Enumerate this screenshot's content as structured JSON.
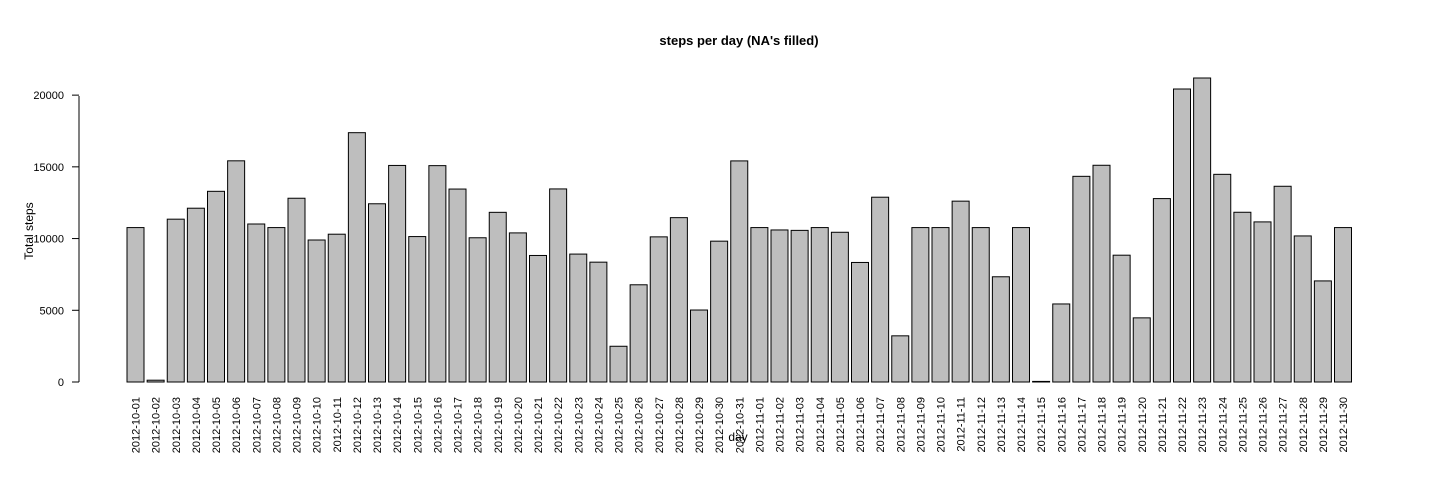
{
  "chart_data": {
    "type": "bar",
    "title": "steps per day (NA's filled)",
    "xlabel": "day",
    "ylabel": "Total steps",
    "ylim": [
      0,
      21194
    ],
    "yticks": [
      0,
      5000,
      10000,
      15000,
      20000
    ],
    "grid": false,
    "colors": {
      "bar_fill": "#bebebe",
      "bar_stroke": "#000000"
    },
    "categories": [
      "2012-10-01",
      "2012-10-02",
      "2012-10-03",
      "2012-10-04",
      "2012-10-05",
      "2012-10-06",
      "2012-10-07",
      "2012-10-08",
      "2012-10-09",
      "2012-10-10",
      "2012-10-11",
      "2012-10-12",
      "2012-10-13",
      "2012-10-14",
      "2012-10-15",
      "2012-10-16",
      "2012-10-17",
      "2012-10-18",
      "2012-10-19",
      "2012-10-20",
      "2012-10-21",
      "2012-10-22",
      "2012-10-23",
      "2012-10-24",
      "2012-10-25",
      "2012-10-26",
      "2012-10-27",
      "2012-10-28",
      "2012-10-29",
      "2012-10-30",
      "2012-10-31",
      "2012-11-01",
      "2012-11-02",
      "2012-11-03",
      "2012-11-04",
      "2012-11-05",
      "2012-11-06",
      "2012-11-07",
      "2012-11-08",
      "2012-11-09",
      "2012-11-10",
      "2012-11-11",
      "2012-11-12",
      "2012-11-13",
      "2012-11-14",
      "2012-11-15",
      "2012-11-16",
      "2012-11-17",
      "2012-11-18",
      "2012-11-19",
      "2012-11-20",
      "2012-11-21",
      "2012-11-22",
      "2012-11-23",
      "2012-11-24",
      "2012-11-25",
      "2012-11-26",
      "2012-11-27",
      "2012-11-28",
      "2012-11-29",
      "2012-11-30"
    ],
    "values": [
      10766,
      126,
      11352,
      12116,
      13294,
      15420,
      11015,
      10766,
      12811,
      9900,
      10304,
      17382,
      12426,
      15098,
      10139,
      15084,
      13452,
      10056,
      11829,
      10395,
      8821,
      13460,
      8918,
      8355,
      2492,
      6778,
      10119,
      11458,
      5018,
      9819,
      15414,
      10766,
      10600,
      10571,
      10766,
      10439,
      8334,
      12883,
      3219,
      10766,
      10766,
      12608,
      10765,
      7336,
      10766,
      41,
      5441,
      14339,
      15110,
      8841,
      4472,
      12787,
      20427,
      21194,
      14478,
      11834,
      11162,
      13646,
      10183,
      7047,
      10766
    ]
  }
}
